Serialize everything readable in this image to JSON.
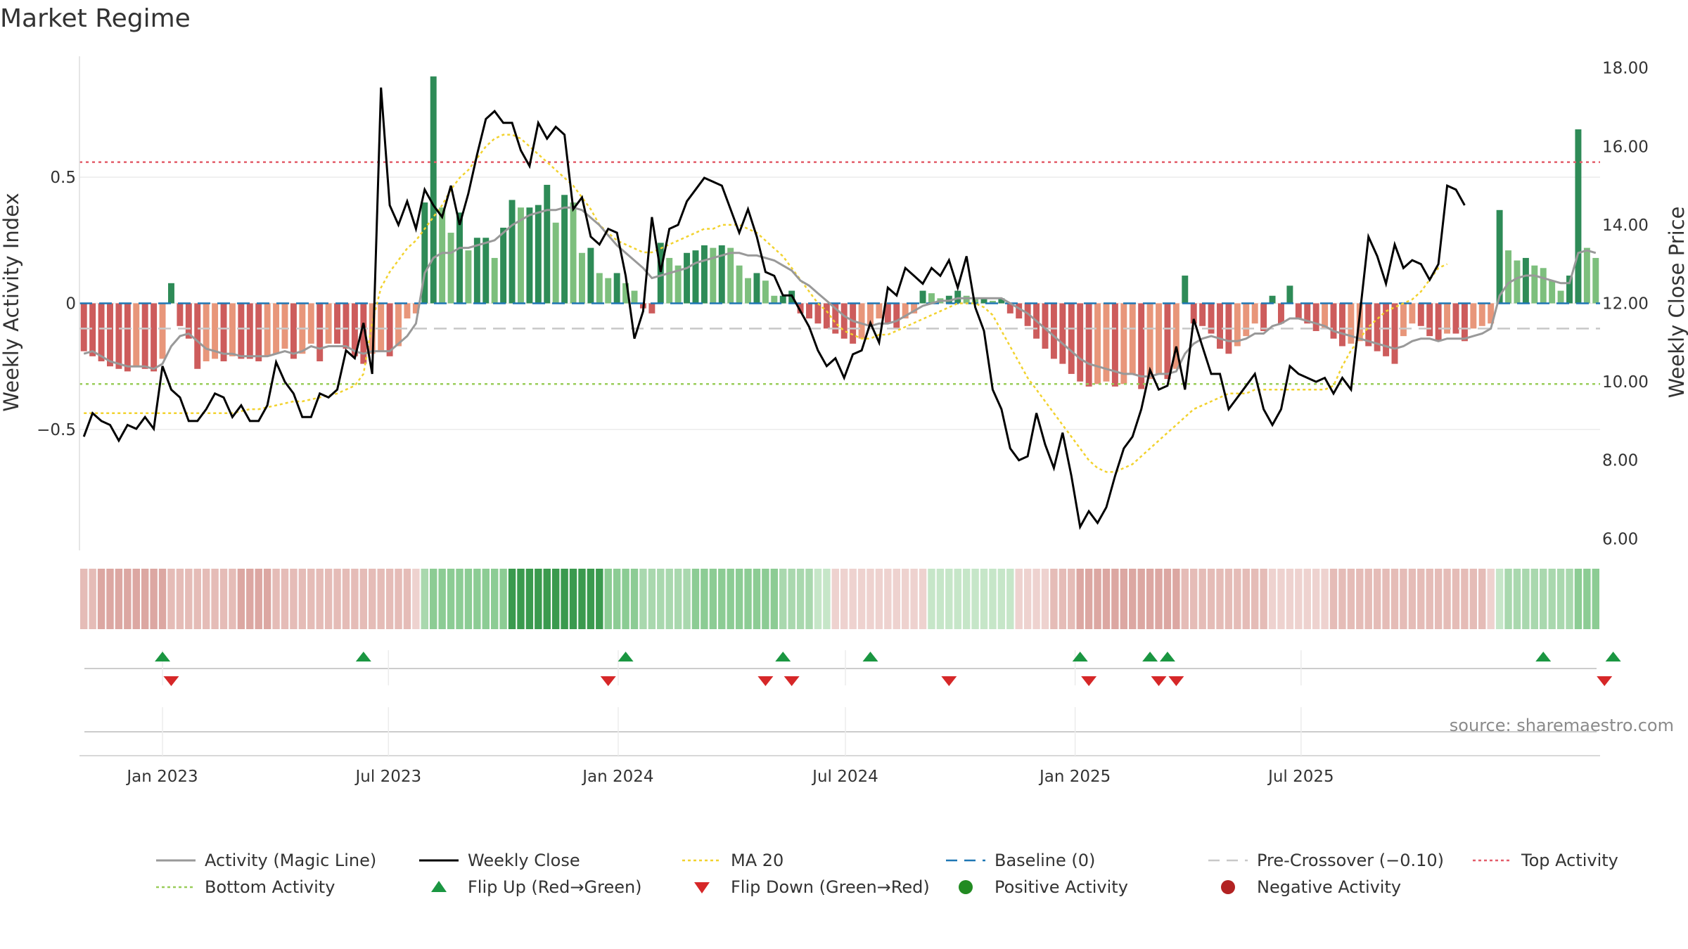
{
  "chart_data": {
    "type": "bar",
    "title": "Market Regime",
    "ylabel": "Weekly Activity Index",
    "y2label": "Weekly Close Price",
    "ylim": [
      -0.98,
      0.98
    ],
    "y2lim": [
      5.7,
      18.3
    ],
    "yticks": [
      -0.5,
      0,
      0.5
    ],
    "ytick_labels": [
      "−0.5",
      "0",
      "0.5"
    ],
    "y2ticks": [
      6,
      8,
      10,
      12,
      14,
      16,
      18
    ],
    "y2tick_labels": [
      "6.00",
      "8.00",
      "10.00",
      "12.00",
      "14.00",
      "16.00",
      "18.00"
    ],
    "xticks": [
      {
        "date": "2023-01-01",
        "label": "Jan 2023"
      },
      {
        "date": "2023-07-01",
        "label": "Jul 2023"
      },
      {
        "date": "2024-01-01",
        "label": "Jan 2024"
      },
      {
        "date": "2024-07-01",
        "label": "Jul 2024"
      },
      {
        "date": "2025-01-01",
        "label": "Jan 2025"
      },
      {
        "date": "2025-07-01",
        "label": "Jul 2025"
      }
    ],
    "x_start": "2022-10-30",
    "x_step_days": 7,
    "activity": [
      -0.19,
      -0.21,
      -0.23,
      -0.25,
      -0.26,
      -0.27,
      -0.25,
      -0.26,
      -0.27,
      -0.22,
      0.08,
      -0.09,
      -0.14,
      -0.26,
      -0.23,
      -0.22,
      -0.23,
      -0.21,
      -0.22,
      -0.22,
      -0.23,
      -0.21,
      -0.2,
      -0.18,
      -0.22,
      -0.2,
      -0.16,
      -0.23,
      -0.16,
      -0.16,
      -0.18,
      -0.21,
      -0.24,
      -0.2,
      -0.19,
      -0.21,
      -0.17,
      -0.06,
      -0.04,
      0.4,
      0.9,
      0.38,
      0.28,
      0.36,
      0.21,
      0.26,
      0.26,
      0.18,
      0.3,
      0.41,
      0.38,
      0.38,
      0.39,
      0.47,
      0.32,
      0.43,
      0.4,
      0.2,
      0.22,
      0.12,
      0.1,
      0.12,
      0.08,
      0.05,
      -0.02,
      -0.04,
      0.24,
      0.18,
      0.15,
      0.2,
      0.21,
      0.23,
      0.22,
      0.23,
      0.22,
      0.15,
      0.1,
      0.12,
      0.09,
      0.03,
      0.03,
      0.05,
      -0.04,
      -0.06,
      -0.08,
      -0.1,
      -0.12,
      -0.14,
      -0.16,
      -0.14,
      -0.09,
      -0.06,
      -0.08,
      -0.1,
      -0.06,
      -0.04,
      0.05,
      0.04,
      0.02,
      0.03,
      0.05,
      0.03,
      0.02,
      0.02,
      0.01,
      0.02,
      -0.04,
      -0.06,
      -0.09,
      -0.14,
      -0.18,
      -0.22,
      -0.24,
      -0.28,
      -0.31,
      -0.33,
      -0.32,
      -0.31,
      -0.33,
      -0.32,
      -0.28,
      -0.34,
      -0.3,
      -0.28,
      -0.3,
      -0.26,
      0.11,
      -0.08,
      -0.09,
      -0.12,
      -0.18,
      -0.2,
      -0.17,
      -0.13,
      -0.08,
      -0.11,
      0.03,
      -0.08,
      0.07,
      -0.06,
      -0.08,
      -0.11,
      -0.1,
      -0.14,
      -0.17,
      -0.16,
      -0.15,
      -0.17,
      -0.19,
      -0.21,
      -0.24,
      -0.13,
      -0.08,
      -0.09,
      -0.13,
      -0.15,
      -0.12,
      -0.12,
      -0.15,
      -0.1,
      -0.09,
      -0.08,
      0.37,
      0.21,
      0.17,
      0.18,
      0.15,
      0.14,
      0.09,
      0.05,
      0.11,
      0.69,
      0.22,
      0.18
    ],
    "activity_bar_colors": {
      "strong_positive": "#2e8b57",
      "positive": "#7dbf7d",
      "negative": "#e8967a",
      "strong_negative": "#cd5c5c"
    },
    "magic_line": [
      -0.2,
      -0.19,
      -0.21,
      -0.23,
      -0.24,
      -0.25,
      -0.25,
      -0.25,
      -0.26,
      -0.24,
      -0.17,
      -0.13,
      -0.12,
      -0.15,
      -0.18,
      -0.19,
      -0.2,
      -0.2,
      -0.21,
      -0.21,
      -0.21,
      -0.21,
      -0.2,
      -0.19,
      -0.2,
      -0.19,
      -0.17,
      -0.18,
      -0.17,
      -0.17,
      -0.17,
      -0.19,
      -0.2,
      -0.19,
      -0.19,
      -0.19,
      -0.16,
      -0.13,
      -0.08,
      0.12,
      0.18,
      0.2,
      0.2,
      0.22,
      0.22,
      0.23,
      0.24,
      0.25,
      0.28,
      0.31,
      0.33,
      0.35,
      0.36,
      0.37,
      0.37,
      0.38,
      0.38,
      0.37,
      0.34,
      0.31,
      0.27,
      0.23,
      0.2,
      0.17,
      0.14,
      0.1,
      0.11,
      0.12,
      0.13,
      0.14,
      0.16,
      0.17,
      0.18,
      0.19,
      0.2,
      0.2,
      0.19,
      0.19,
      0.18,
      0.17,
      0.15,
      0.13,
      0.09,
      0.07,
      0.04,
      0.01,
      -0.02,
      -0.05,
      -0.07,
      -0.08,
      -0.09,
      -0.08,
      -0.08,
      -0.07,
      -0.05,
      -0.03,
      -0.01,
      0.0,
      0.01,
      0.01,
      0.02,
      0.02,
      0.02,
      0.02,
      0.02,
      0.02,
      0.0,
      -0.02,
      -0.04,
      -0.07,
      -0.1,
      -0.13,
      -0.16,
      -0.19,
      -0.22,
      -0.24,
      -0.25,
      -0.26,
      -0.27,
      -0.28,
      -0.28,
      -0.29,
      -0.29,
      -0.28,
      -0.28,
      -0.27,
      -0.2,
      -0.16,
      -0.14,
      -0.13,
      -0.14,
      -0.15,
      -0.15,
      -0.14,
      -0.12,
      -0.12,
      -0.09,
      -0.08,
      -0.06,
      -0.06,
      -0.07,
      -0.08,
      -0.09,
      -0.11,
      -0.12,
      -0.13,
      -0.14,
      -0.15,
      -0.16,
      -0.17,
      -0.18,
      -0.17,
      -0.15,
      -0.14,
      -0.14,
      -0.15,
      -0.14,
      -0.14,
      -0.14,
      -0.13,
      -0.12,
      -0.1,
      0.03,
      0.08,
      0.1,
      0.11,
      0.11,
      0.1,
      0.09,
      0.08,
      0.08,
      0.2,
      0.21,
      0.2
    ],
    "weekly_close": [
      8.6,
      9.2,
      9.0,
      8.9,
      8.5,
      8.9,
      8.8,
      9.1,
      8.8,
      10.4,
      9.8,
      9.6,
      9.0,
      9.0,
      9.3,
      9.7,
      9.6,
      9.1,
      9.4,
      9.0,
      9.0,
      9.4,
      10.5,
      10.0,
      9.7,
      9.1,
      9.1,
      9.7,
      9.6,
      9.8,
      10.8,
      10.6,
      11.5,
      10.2,
      17.5,
      14.5,
      14.0,
      14.6,
      13.9,
      14.9,
      14.5,
      14.2,
      15.0,
      14.0,
      14.8,
      15.8,
      16.7,
      16.9,
      16.6,
      16.6,
      15.9,
      15.5,
      16.6,
      16.2,
      16.5,
      16.3,
      14.4,
      14.7,
      13.7,
      13.5,
      13.9,
      13.8,
      12.7,
      11.1,
      11.8,
      14.2,
      12.8,
      13.9,
      14.0,
      14.6,
      14.9,
      15.2,
      15.1,
      15.0,
      14.4,
      13.8,
      14.4,
      13.7,
      12.8,
      12.7,
      12.2,
      12.2,
      11.8,
      11.4,
      10.8,
      10.4,
      10.6,
      10.1,
      10.7,
      10.8,
      11.5,
      11.0,
      12.4,
      12.2,
      12.9,
      12.7,
      12.5,
      12.9,
      12.7,
      13.1,
      12.4,
      13.2,
      11.9,
      11.3,
      9.8,
      9.3,
      8.3,
      8.0,
      8.1,
      9.2,
      8.4,
      7.8,
      8.7,
      7.6,
      6.3,
      6.7,
      6.4,
      6.8,
      7.6,
      8.3,
      8.6,
      9.3,
      10.3,
      9.8,
      9.9,
      10.9,
      9.8,
      11.6,
      10.9,
      10.2,
      10.2,
      9.3,
      9.6,
      9.9,
      10.2,
      9.3,
      8.9,
      9.3,
      10.4,
      10.2,
      10.1,
      10.0,
      10.1,
      9.7,
      10.1,
      9.8,
      11.7,
      13.7,
      13.2,
      12.5,
      13.5,
      12.9,
      13.1,
      13.0,
      12.6,
      13.0,
      15.0,
      14.9,
      14.5
    ],
    "ma20": [
      9.2,
      9.2,
      9.2,
      9.2,
      9.2,
      9.2,
      9.2,
      9.2,
      9.2,
      9.2,
      9.2,
      9.2,
      9.2,
      9.2,
      9.2,
      9.2,
      9.2,
      9.2,
      9.25,
      9.3,
      9.3,
      9.35,
      9.4,
      9.45,
      9.5,
      9.5,
      9.55,
      9.6,
      9.65,
      9.7,
      9.8,
      9.9,
      10.2,
      11.5,
      12.4,
      12.8,
      13.1,
      13.4,
      13.6,
      13.9,
      14.2,
      14.5,
      14.9,
      15.2,
      15.4,
      15.7,
      16.0,
      16.2,
      16.3,
      16.3,
      16.2,
      16.0,
      15.8,
      15.6,
      15.4,
      15.2,
      15.0,
      14.7,
      14.4,
      14.0,
      13.8,
      13.6,
      13.5,
      13.4,
      13.3,
      13.3,
      13.4,
      13.5,
      13.6,
      13.7,
      13.8,
      13.9,
      13.9,
      14.0,
      14.0,
      14.0,
      13.9,
      13.8,
      13.6,
      13.4,
      13.2,
      12.9,
      12.6,
      12.3,
      12.0,
      11.8,
      11.5,
      11.3,
      11.2,
      11.1,
      11.1,
      11.2,
      11.2,
      11.3,
      11.4,
      11.5,
      11.6,
      11.7,
      11.8,
      11.9,
      12.0,
      12.0,
      12.0,
      11.9,
      11.7,
      11.3,
      10.9,
      10.5,
      10.1,
      9.8,
      9.5,
      9.2,
      8.9,
      8.6,
      8.3,
      8.0,
      7.8,
      7.7,
      7.7,
      7.8,
      7.9,
      8.1,
      8.3,
      8.5,
      8.7,
      8.9,
      9.1,
      9.3,
      9.4,
      9.5,
      9.6,
      9.7,
      9.7,
      9.7,
      9.8,
      9.8,
      9.8,
      9.8,
      9.8,
      9.8,
      9.8,
      9.8,
      9.8,
      9.9,
      10.4,
      10.8,
      11.1,
      11.4,
      11.6,
      11.8,
      11.9,
      12.0,
      12.1,
      12.3,
      12.6,
      12.9,
      13.0
    ],
    "baseline": 0,
    "pre_crossover": -0.1,
    "top_activity": 0.56,
    "bottom_activity": -0.32,
    "flip_up_weeks": [
      9,
      32,
      62,
      80,
      90,
      114,
      122,
      124,
      167,
      175
    ],
    "flip_down_weeks": [
      10,
      60,
      78,
      81,
      99,
      115,
      123,
      125,
      174
    ],
    "source": "source: sharemaestro.com",
    "legend": [
      {
        "label": "Activity (Magic Line)",
        "kind": "line",
        "color": "#999999"
      },
      {
        "label": "Weekly Close",
        "kind": "line",
        "color": "#000000"
      },
      {
        "label": "MA 20",
        "kind": "dotted",
        "color": "#f2d22e"
      },
      {
        "label": "Baseline (0)",
        "kind": "dashed",
        "color": "#1f77b4"
      },
      {
        "label": "Pre-Crossover (−0.10)",
        "kind": "dashed",
        "color": "#c8c8c8"
      },
      {
        "label": "Top Activity",
        "kind": "dotted",
        "color": "#e35d6a"
      },
      {
        "label": "Bottom Activity",
        "kind": "dotted",
        "color": "#9acd5a"
      },
      {
        "label": "Flip Up (Red→Green)",
        "kind": "tri-up",
        "color": "#1a9641"
      },
      {
        "label": "Flip Down (Green→Red)",
        "kind": "tri-down",
        "color": "#d62728"
      },
      {
        "label": "Positive Activity",
        "kind": "dot",
        "color": "#228b22"
      },
      {
        "label": "Negative Activity",
        "kind": "dot",
        "color": "#b22222"
      }
    ],
    "legend_placement": "bottom",
    "grid": true
  }
}
